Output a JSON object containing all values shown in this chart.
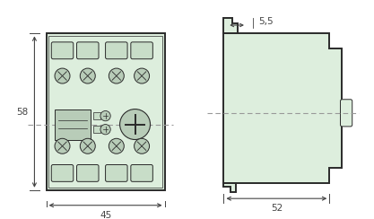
{
  "bg_color": "#ffffff",
  "fill_color": "#ddeedd",
  "dark_color": "#2a2a2a",
  "dim_color": "#444444",
  "dashed_color": "#999999",
  "screw_fill": "#b8ccb8",
  "conn_fill": "#c8ddc8",
  "fig_w": 4.17,
  "fig_h": 2.44,
  "dpi": 100,
  "dim_58_label": "58",
  "dim_45_label": "45",
  "dim_52_label": "52",
  "dim_55_label": "5,5"
}
